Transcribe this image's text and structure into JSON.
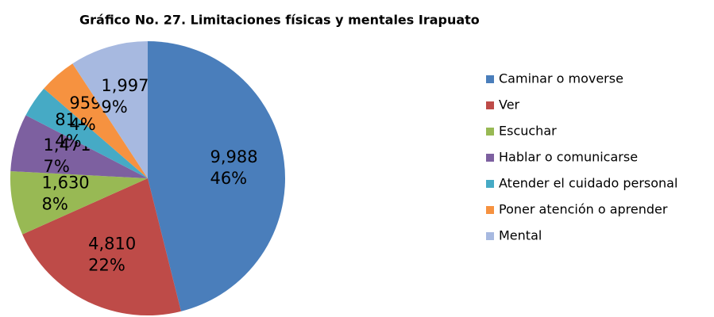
{
  "chart_data": {
    "type": "pie",
    "title": "Gráfico No. 27. Limitaciones físicas y mentales Irapuato",
    "categories": [
      "Caminar o moverse",
      "Ver",
      "Escuchar",
      "Hablar o comunicarse",
      "Atender el cuidado personal",
      "Poner atención o aprender",
      "Mental"
    ],
    "values": [
      9988,
      4810,
      1630,
      1471,
      811,
      959,
      1997
    ],
    "value_labels": [
      "9,988",
      "4,810",
      "1,630",
      "1,471",
      "811",
      "959",
      "1,997"
    ],
    "percent_labels": [
      "46%",
      "22%",
      "8%",
      "7%",
      "4%",
      "4%",
      "9%"
    ],
    "colors": [
      "#4a7ebb",
      "#be4b48",
      "#98b954",
      "#7d60a0",
      "#46aac5",
      "#f69240",
      "#a7b9e0"
    ],
    "legend": "right"
  }
}
